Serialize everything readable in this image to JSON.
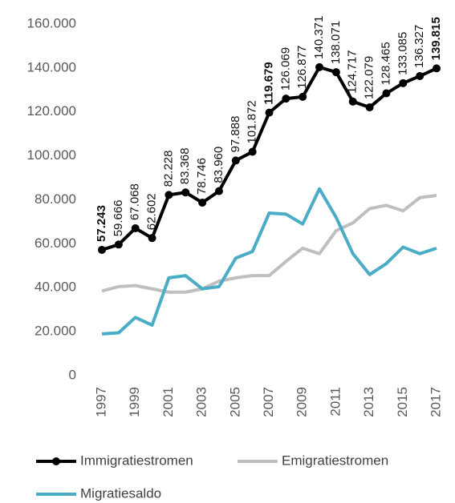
{
  "chart_data": {
    "type": "line",
    "x": [
      1997,
      1998,
      1999,
      2000,
      2001,
      2002,
      2003,
      2004,
      2005,
      2006,
      2007,
      2008,
      2009,
      2010,
      2011,
      2012,
      2013,
      2014,
      2015,
      2016,
      2017
    ],
    "xlim": [
      1997,
      2017
    ],
    "xticks": [
      1997,
      1999,
      2001,
      2003,
      2005,
      2007,
      2009,
      2011,
      2013,
      2015,
      2017
    ],
    "ylim": [
      0,
      160000
    ],
    "yticks": [
      0,
      {
        "value": 20000,
        "label": "20.000"
      },
      {
        "value": 40000,
        "label": "40.000"
      },
      {
        "value": 60000,
        "label": "60.000"
      },
      {
        "value": 80000,
        "label": "80.000"
      },
      {
        "value": 100000,
        "label": "100.000"
      },
      {
        "value": 120000,
        "label": "120.000"
      },
      {
        "value": 140000,
        "label": "140.000"
      },
      {
        "value": 160000,
        "label": "160.000"
      }
    ],
    "grid": false,
    "legend": "bottom",
    "series": [
      {
        "name": "Immigratiestromen",
        "color": "#000000",
        "markers": true,
        "values": [
          57243,
          59666,
          67068,
          62602,
          82228,
          83368,
          78746,
          83960,
          97888,
          101872,
          119679,
          126069,
          126877,
          140371,
          138071,
          124717,
          122079,
          128465,
          133085,
          136327,
          139815
        ],
        "value_labels": [
          "57.243",
          "59.666",
          "67.068",
          "62.602",
          "82.228",
          "83.368",
          "78.746",
          "83.960",
          "97.888",
          "101.872",
          "119.679",
          "126.069",
          "126.877",
          "140.371",
          "138.071",
          "124.717",
          "122.079",
          "128.465",
          "133.085",
          "136.327",
          "139.815"
        ],
        "bold_labels": [
          0,
          10,
          20
        ]
      },
      {
        "name": "Emigratiestromen",
        "color": "#bfbfbf",
        "markers": false,
        "values": [
          38500,
          40500,
          41000,
          39500,
          38000,
          38000,
          39500,
          43000,
          44500,
          45500,
          45500,
          52000,
          58000,
          55500,
          66000,
          69500,
          76000,
          77500,
          75000,
          81000,
          82000
        ]
      },
      {
        "name": "Migratiesaldo",
        "color": "#4bacc6",
        "markers": false,
        "values": [
          19000,
          19500,
          26500,
          23000,
          44500,
          45500,
          39500,
          40500,
          53500,
          56500,
          74000,
          73500,
          69000,
          85000,
          72000,
          55500,
          46000,
          51000,
          58500,
          55500,
          58000
        ]
      }
    ]
  }
}
